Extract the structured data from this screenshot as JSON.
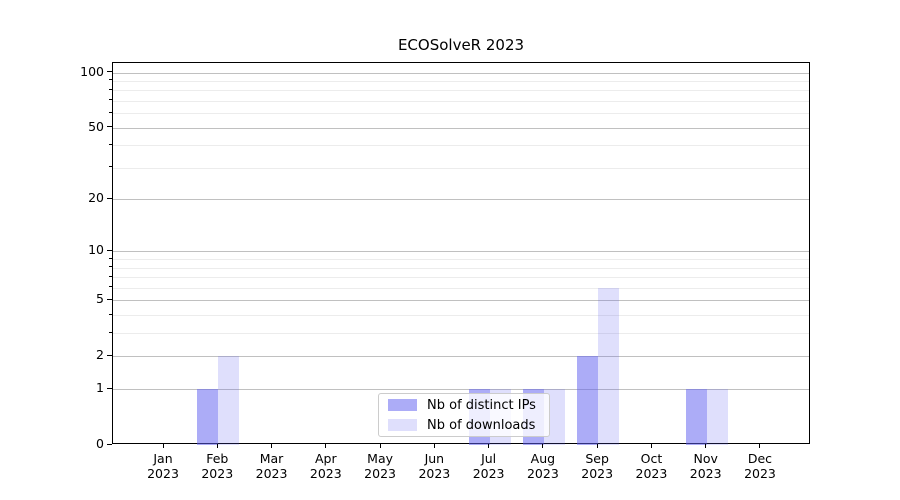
{
  "figure": {
    "background": "#ffffff"
  },
  "chart_data": {
    "type": "bar",
    "title": "ECOSolveR 2023",
    "categories": [
      "Jan 2023",
      "Feb 2023",
      "Mar 2023",
      "Apr 2023",
      "May 2023",
      "Jun 2023",
      "Jul 2023",
      "Aug 2023",
      "Sep 2023",
      "Oct 2023",
      "Nov 2023",
      "Dec 2023"
    ],
    "x_tick_months": [
      "Jan",
      "Feb",
      "Mar",
      "Apr",
      "May",
      "Jun",
      "Jul",
      "Aug",
      "Sep",
      "Oct",
      "Nov",
      "Dec"
    ],
    "x_tick_year": "2023",
    "series": [
      {
        "name": "Nb of distinct IPs",
        "color": "rgba(95,95,240,0.52)",
        "values": [
          0,
          1,
          0,
          0,
          0,
          0,
          1,
          1,
          2,
          0,
          1,
          0
        ]
      },
      {
        "name": "Nb of downloads",
        "color": "rgba(95,95,240,0.20)",
        "values": [
          0,
          2,
          0,
          0,
          0,
          0,
          1,
          1,
          6,
          0,
          1,
          0
        ]
      }
    ],
    "xlabel": "",
    "ylabel": "",
    "yscale": "log1p",
    "ylim": [
      0,
      112
    ],
    "yticks": [
      0,
      1,
      2,
      5,
      10,
      20,
      50,
      100
    ],
    "minor_yticks": [
      3,
      4,
      6,
      7,
      8,
      9,
      30,
      40,
      60,
      70,
      80,
      90
    ],
    "grid": true,
    "major_grid_color": "#c0c0c0",
    "minor_grid_color": "#ececec",
    "legend_position": "inside lower center",
    "legend_labels": [
      "Nb of distinct IPs",
      "Nb of downloads"
    ]
  }
}
